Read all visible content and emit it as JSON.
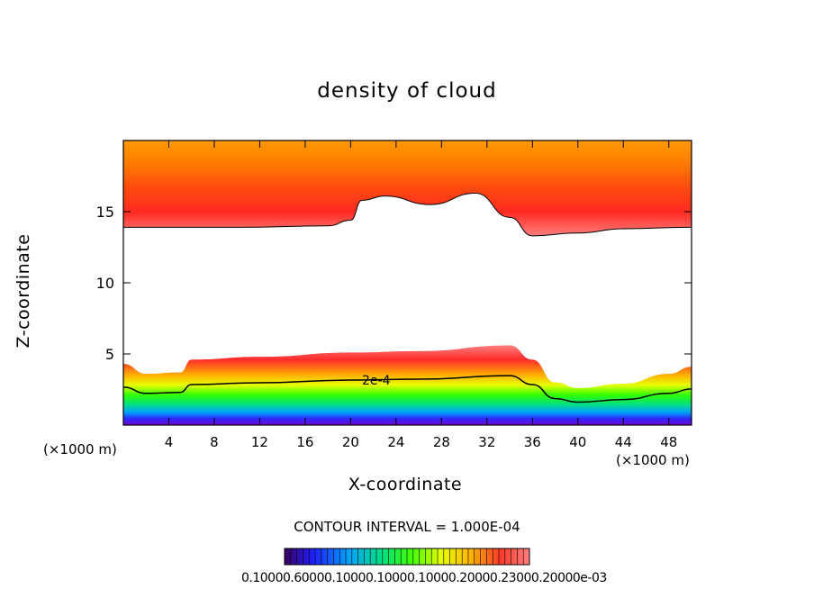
{
  "chart_data": {
    "type": "heatmap",
    "title": "density of cloud",
    "xlabel": "X-coordinate",
    "ylabel": "Z-coordinate",
    "x_unit_left": "(×1000 m)",
    "x_unit_right": "(×1000 m)",
    "xlim": [
      0,
      50
    ],
    "ylim": [
      0,
      20
    ],
    "x_ticks": [
      4,
      8,
      12,
      16,
      20,
      24,
      28,
      32,
      36,
      40,
      44,
      48
    ],
    "y_ticks": [
      5,
      10,
      15
    ],
    "contour_interval_text": "CONTOUR INTERVAL = 1.000E-04",
    "contour_label": "2e-4",
    "upper_layer_base_km": [
      [
        0,
        13.9
      ],
      [
        10,
        13.9
      ],
      [
        18,
        14.0
      ],
      [
        20,
        14.4
      ],
      [
        21,
        15.8
      ],
      [
        23,
        16.1
      ],
      [
        27,
        15.5
      ],
      [
        31,
        16.3
      ],
      [
        34,
        14.6
      ],
      [
        36,
        13.3
      ],
      [
        40,
        13.5
      ],
      [
        44,
        13.8
      ],
      [
        50,
        13.9
      ]
    ],
    "lower_layer_top_km": [
      [
        0,
        4.3
      ],
      [
        2,
        3.6
      ],
      [
        5,
        3.7
      ],
      [
        6,
        4.6
      ],
      [
        12,
        4.8
      ],
      [
        20,
        5.1
      ],
      [
        26,
        5.2
      ],
      [
        34,
        5.6
      ],
      [
        36,
        4.6
      ],
      [
        38,
        3.0
      ],
      [
        40,
        2.6
      ],
      [
        44,
        2.9
      ],
      [
        48,
        3.6
      ],
      [
        50,
        4.1
      ]
    ],
    "colorbar_labels_text": "0.10000.60000.10000.10000.10000.20000.23000.20000e-03"
  }
}
